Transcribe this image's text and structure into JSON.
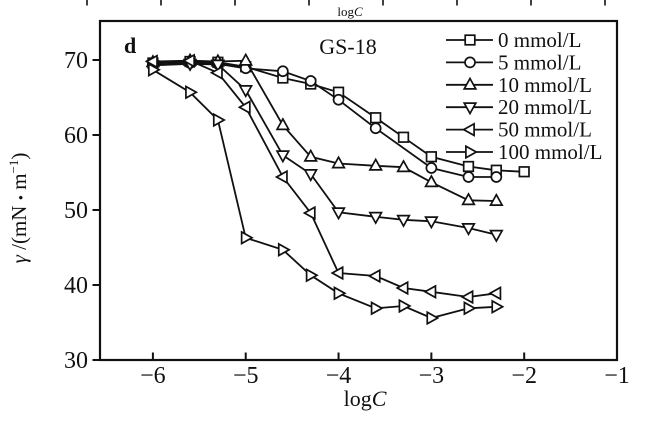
{
  "top_fragment": {
    "xlabel_prefix": "log",
    "xlabel_italic": "C"
  },
  "labels": {
    "xlabel_prefix": "log",
    "xlabel_italic": "C",
    "ylabel_gamma": "γ",
    "ylabel_mid": " /(mN ",
    "ylabel_dot": "•",
    "ylabel_m": " m",
    "ylabel_sup": "−1",
    "ylabel_close": ")"
  },
  "chart_data": {
    "type": "line",
    "title": "GS-18",
    "panel_label": "d",
    "xlabel": "logC",
    "ylabel": "γ/(mN·m⁻¹)",
    "xlim": [
      -6.57,
      -1.0
    ],
    "ylim": [
      30,
      75.2
    ],
    "xticks": [
      -6,
      -5,
      -4,
      -3,
      -2,
      -1
    ],
    "yticks": [
      70,
      60,
      50,
      40,
      30
    ],
    "grid": false,
    "legend_position": "top-right",
    "marker_fill": "#ffffff",
    "stroke_color": "#111111",
    "background": "#ffffff",
    "series": [
      {
        "name": "0 mmol/L",
        "marker": "square",
        "x": [
          -6.0,
          -5.6,
          -5.3,
          -5.0,
          -4.6,
          -4.3,
          -4.0,
          -3.6,
          -3.3,
          -3.0,
          -2.6,
          -2.3,
          -2.0
        ],
        "y": [
          69.6,
          69.8,
          69.7,
          69.1,
          67.6,
          66.8,
          65.7,
          62.3,
          59.7,
          57.1,
          55.8,
          55.3,
          55.1
        ]
      },
      {
        "name": "5 mmol/L",
        "marker": "circle",
        "x": [
          -6.0,
          -5.6,
          -5.3,
          -5.0,
          -4.6,
          -4.3,
          -4.0,
          -3.6,
          -3.0,
          -2.6,
          -2.3
        ],
        "y": [
          69.4,
          69.6,
          69.5,
          68.9,
          68.5,
          67.2,
          64.7,
          60.9,
          55.6,
          54.4,
          54.4
        ]
      },
      {
        "name": "10 mmol/L",
        "marker": "triangle-up",
        "x": [
          -6.0,
          -5.6,
          -5.3,
          -5.0,
          -4.6,
          -4.3,
          -4.0,
          -3.6,
          -3.3,
          -3.0,
          -2.6,
          -2.3
        ],
        "y": [
          69.7,
          69.9,
          69.8,
          69.9,
          61.3,
          57.1,
          56.2,
          55.9,
          55.7,
          53.7,
          51.3,
          51.2
        ]
      },
      {
        "name": "20 mmol/L",
        "marker": "triangle-down",
        "x": [
          -6.0,
          -5.6,
          -5.3,
          -5.0,
          -4.6,
          -4.3,
          -4.0,
          -3.6,
          -3.3,
          -3.0,
          -2.6,
          -2.3
        ],
        "y": [
          69.3,
          69.5,
          69.4,
          66.0,
          57.3,
          54.8,
          49.7,
          49.1,
          48.7,
          48.5,
          47.6,
          46.7
        ]
      },
      {
        "name": "50 mmol/L",
        "marker": "triangle-left",
        "x": [
          -6.0,
          -5.6,
          -5.3,
          -5.0,
          -4.6,
          -4.3,
          -4.0,
          -3.6,
          -3.3,
          -3.0,
          -2.6,
          -2.3
        ],
        "y": [
          69.8,
          69.9,
          68.3,
          63.7,
          54.4,
          49.6,
          41.6,
          41.2,
          39.6,
          39.1,
          38.4,
          38.9
        ]
      },
      {
        "name": "100 mmol/L",
        "marker": "triangle-right",
        "x": [
          -6.0,
          -5.6,
          -5.3,
          -5.0,
          -4.6,
          -4.3,
          -4.0,
          -3.6,
          -3.3,
          -3.0,
          -2.6,
          -2.3
        ],
        "y": [
          68.7,
          65.7,
          62.0,
          46.3,
          44.7,
          41.3,
          38.9,
          36.9,
          37.2,
          35.6,
          36.9,
          37.1
        ]
      }
    ]
  }
}
